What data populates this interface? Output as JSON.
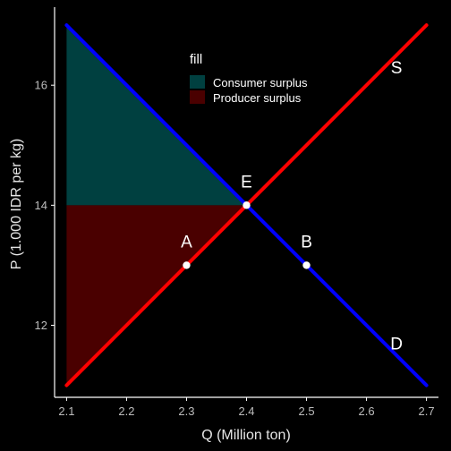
{
  "chart_data": {
    "type": "line",
    "title": "",
    "xlabel": "Q (Million ton)",
    "ylabel": "P (1.000 IDR per kg)",
    "xlim": [
      2.08,
      2.72
    ],
    "ylim": [
      10.8,
      17.3
    ],
    "x_ticks": [
      "2.1",
      "2.2",
      "2.3",
      "2.4",
      "2.5",
      "2.6",
      "2.7"
    ],
    "y_ticks": [
      "12",
      "14",
      "16"
    ],
    "grid": false,
    "series": [
      {
        "name": "D",
        "color": "#0000ff",
        "x": [
          2.1,
          2.7
        ],
        "y": [
          17,
          11
        ]
      },
      {
        "name": "S",
        "color": "#ff0000",
        "x": [
          2.1,
          2.7
        ],
        "y": [
          11,
          17
        ]
      }
    ],
    "areas": [
      {
        "name": "Consumer surplus",
        "color": "#004040",
        "polygon": [
          [
            2.1,
            17
          ],
          [
            2.4,
            14
          ],
          [
            2.1,
            14
          ]
        ]
      },
      {
        "name": "Producer surplus",
        "color": "#4a0000",
        "polygon": [
          [
            2.1,
            14
          ],
          [
            2.4,
            14
          ],
          [
            2.1,
            11
          ]
        ]
      }
    ],
    "points": [
      {
        "label": "A",
        "x": 2.3,
        "y": 13
      },
      {
        "label": "E",
        "x": 2.4,
        "y": 14
      },
      {
        "label": "B",
        "x": 2.5,
        "y": 13
      }
    ],
    "line_labels": [
      {
        "label": "S",
        "x": 2.65,
        "y": 16.3
      },
      {
        "label": "D",
        "x": 2.65,
        "y": 11.7
      }
    ],
    "legend": {
      "title": "fill",
      "position": "top-center",
      "entries": [
        {
          "label": "Consumer surplus",
          "color": "#004040"
        },
        {
          "label": "Producer surplus",
          "color": "#4a0000"
        }
      ]
    }
  }
}
